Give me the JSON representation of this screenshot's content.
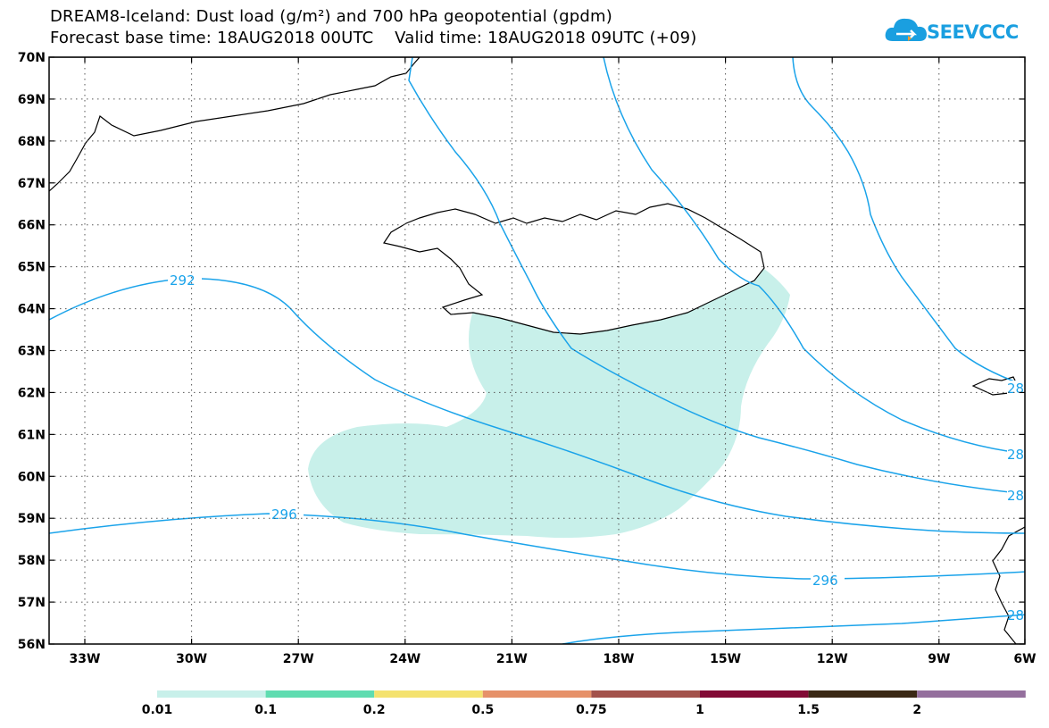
{
  "title": {
    "line1": "DREAM8-Iceland: Dust load (g/m²) and 700 hPa geopotential (gpdm)",
    "line2": "Forecast base time: 18AUG2018 00UTC    Valid time: 18AUG2018 09UTC (+09)"
  },
  "logo": {
    "text": "SEEVCCC",
    "icon": "cloud-icon",
    "color": "#1a9fe0"
  },
  "map": {
    "lat_labels": [
      "70N",
      "69N",
      "68N",
      "67N",
      "66N",
      "65N",
      "64N",
      "63N",
      "62N",
      "61N",
      "60N",
      "59N",
      "58N",
      "57N",
      "56N"
    ],
    "lon_labels": [
      "33W",
      "30W",
      "27W",
      "24W",
      "21W",
      "18W",
      "15W",
      "12W",
      "9W",
      "6W"
    ],
    "contour_color": "#1aa3ea",
    "contour_labels": [
      "292",
      "296",
      "296",
      "28",
      "28",
      "28",
      "28"
    ],
    "dust_colors": {
      "low": "#c8f0ea",
      "mid": "#5fdcb0"
    }
  },
  "colorbar": {
    "labels": [
      "0.01",
      "0.1",
      "0.2",
      "0.5",
      "0.75",
      "1",
      "1.5",
      "2"
    ],
    "colors": [
      "#c8f0ea",
      "#5fdcb0",
      "#f4e26f",
      "#e69169",
      "#a3524b",
      "#820a35",
      "#3a2814",
      "#946f9d"
    ]
  }
}
